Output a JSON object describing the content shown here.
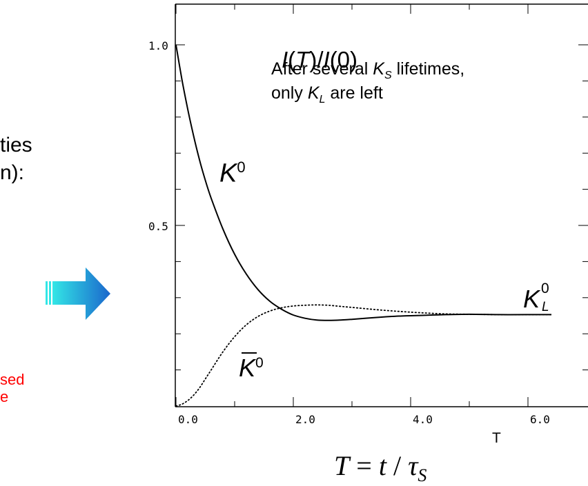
{
  "fragments": {
    "ties": "ties",
    "n_colon": "n):",
    "sed": "sed",
    "e": "e"
  },
  "y_label": {
    "I1": "I",
    "T": "T",
    "mid": ")/",
    "I2": "I",
    "tail": "(0)"
  },
  "annotation": {
    "line1_pre": "After several ",
    "line1_K": "K",
    "line1_sub": "S",
    "line1_post": " lifetimes,",
    "line2_pre": "only ",
    "line2_K": "K",
    "line2_sub": "L",
    "line2_post": " are left"
  },
  "curve_labels": {
    "k0_base": "K",
    "k0_sup": "0",
    "kbar_base": "K",
    "kbar_sup": "0",
    "kl_base": "K",
    "kl_sup": "0",
    "kl_sub": "L"
  },
  "x_title": {
    "T": "T",
    "eq": " = ",
    "t": "t",
    "slash": " / ",
    "tau": "τ",
    "sub": "S"
  },
  "x_axis_extra_label": "T",
  "colors": {
    "arrow_light": "#33e6e6",
    "arrow_dark": "#1a66cc",
    "red_text": "#ff0000"
  },
  "chart_data": {
    "type": "line",
    "xlim": [
      0,
      6.4
    ],
    "ylim": [
      0,
      1.0
    ],
    "x_ticks": [
      0.0,
      2.0,
      4.0,
      6.0
    ],
    "x_tick_labels": [
      "0.0",
      "2.0",
      "4.0",
      "6.0"
    ],
    "y_ticks": [
      0.5,
      1.0
    ],
    "y_tick_labels": [
      "0.5",
      "1.0"
    ],
    "grid": false,
    "series": [
      {
        "label_ref": "K0",
        "style": "solid",
        "x": [
          0.0,
          0.1,
          0.2,
          0.3,
          0.4,
          0.5,
          0.6,
          0.8,
          1.0,
          1.2,
          1.4,
          1.6,
          1.8,
          2.0,
          2.2,
          2.4,
          2.6,
          2.8,
          3.0,
          3.4,
          3.8,
          4.2,
          4.6,
          5.0,
          5.5,
          6.0,
          6.4
        ],
        "y": [
          1.0,
          0.905,
          0.822,
          0.748,
          0.682,
          0.625,
          0.575,
          0.49,
          0.42,
          0.365,
          0.322,
          0.29,
          0.268,
          0.252,
          0.243,
          0.238,
          0.237,
          0.238,
          0.24,
          0.245,
          0.249,
          0.251,
          0.253,
          0.254,
          0.253,
          0.253,
          0.253
        ]
      },
      {
        "label_ref": "K0bar",
        "style": "dotted",
        "x": [
          0.0,
          0.1,
          0.2,
          0.3,
          0.4,
          0.5,
          0.6,
          0.8,
          1.0,
          1.2,
          1.4,
          1.6,
          1.8,
          2.0,
          2.2,
          2.4,
          2.6,
          2.8,
          3.0,
          3.4,
          3.8,
          4.2,
          4.6,
          5.0,
          5.5,
          6.0,
          6.4
        ],
        "y": [
          0.0,
          0.005,
          0.015,
          0.03,
          0.05,
          0.075,
          0.1,
          0.15,
          0.192,
          0.225,
          0.248,
          0.263,
          0.272,
          0.277,
          0.279,
          0.28,
          0.279,
          0.276,
          0.273,
          0.267,
          0.262,
          0.258,
          0.255,
          0.254,
          0.253,
          0.253,
          0.253
        ]
      }
    ]
  }
}
